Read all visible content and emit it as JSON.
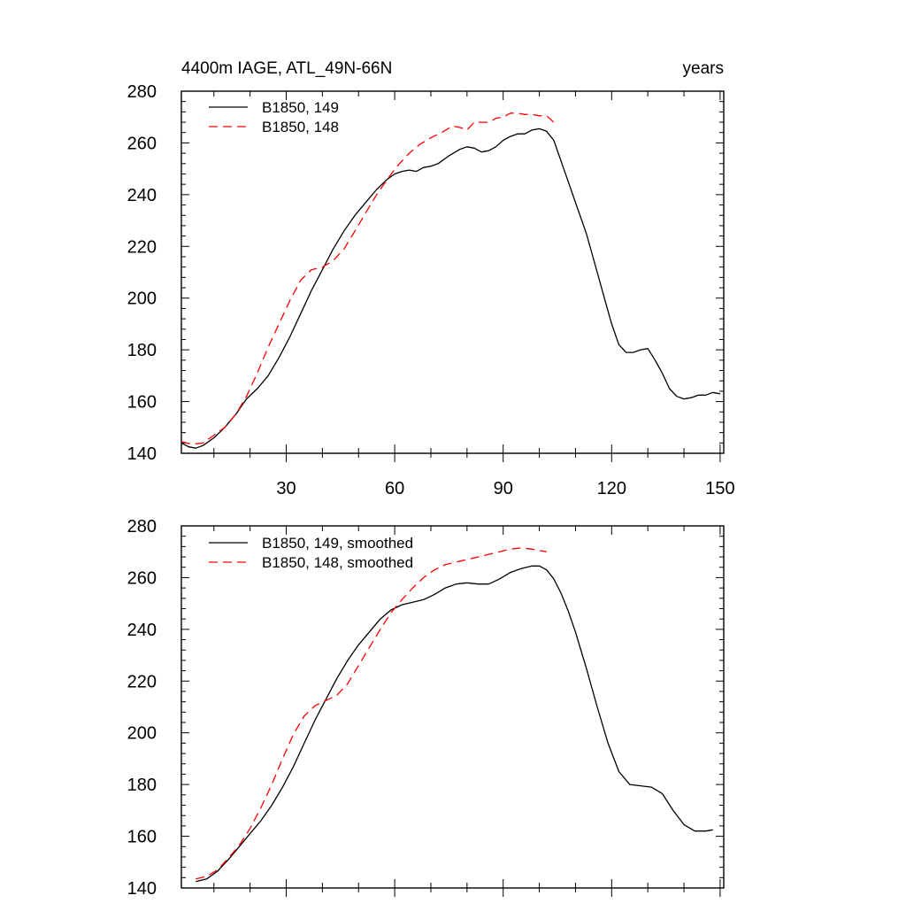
{
  "chart_data": [
    {
      "type": "line",
      "title": "4400m IAGE, ATL_49N-66N",
      "units_label": "years",
      "xlabel": "",
      "ylabel": "",
      "xlim": [
        1,
        151
      ],
      "ylim": [
        140,
        280
      ],
      "xticks": [
        30,
        60,
        90,
        120,
        150
      ],
      "yticks": [
        140,
        160,
        180,
        200,
        220,
        240,
        260,
        280
      ],
      "legend_position": "top-left",
      "series": [
        {
          "name": "B1850, 149",
          "color": "#000000",
          "dash": "solid",
          "x": [
            1,
            3,
            5,
            7,
            10,
            13,
            16,
            19,
            22,
            25,
            28,
            31,
            34,
            37,
            40,
            43,
            46,
            49,
            52,
            55,
            58,
            60,
            62,
            64,
            66,
            68,
            70,
            72,
            75,
            78,
            80,
            82,
            84,
            86,
            88,
            90,
            92,
            94,
            96,
            98,
            100,
            102,
            104,
            106,
            108,
            110,
            113,
            116,
            118,
            120,
            122,
            124,
            126,
            128,
            130,
            132,
            134,
            136,
            138,
            140,
            142,
            144,
            146,
            148,
            150
          ],
          "y": [
            144,
            142.5,
            142,
            143,
            146,
            150,
            155,
            161,
            165,
            170,
            177,
            185,
            194,
            203,
            211,
            219,
            226,
            232,
            237,
            242,
            246,
            248,
            249,
            249.5,
            249,
            250.5,
            251,
            252,
            255,
            257.5,
            258.5,
            258,
            256.5,
            257,
            258.5,
            261,
            262.5,
            263.5,
            263.5,
            265,
            265.5,
            264.5,
            261,
            253,
            245,
            237,
            225,
            210,
            200,
            190,
            182,
            179,
            179,
            180,
            180.5,
            176,
            171,
            165,
            162,
            161,
            161.5,
            162.5,
            162.5,
            163.5,
            163
          ]
        },
        {
          "name": "B1850, 148",
          "color": "#ff0000",
          "dash": "dashed",
          "x": [
            1,
            4,
            7,
            10,
            13,
            16,
            19,
            22,
            25,
            28,
            31,
            34,
            37,
            40,
            43,
            46,
            49,
            52,
            55,
            58,
            61,
            64,
            67,
            70,
            73,
            76,
            78,
            80,
            82,
            84,
            86,
            88,
            90,
            92,
            94,
            96,
            98,
            100,
            102,
            104
          ],
          "y": [
            144.5,
            143.5,
            144,
            147,
            150,
            155,
            162,
            171,
            181,
            190,
            199,
            207,
            211,
            212,
            214.5,
            219,
            226,
            233,
            240,
            246,
            251.5,
            256,
            259.5,
            262,
            264,
            266.5,
            266,
            265,
            268,
            268,
            268,
            269.5,
            270,
            271.5,
            271.5,
            271,
            271,
            270.5,
            270.5,
            268
          ]
        }
      ]
    },
    {
      "type": "line",
      "title": "",
      "xlabel": "",
      "ylabel": "",
      "xlim": [
        1,
        151
      ],
      "ylim": [
        140,
        280
      ],
      "xticks": [
        30,
        60,
        90,
        120,
        150
      ],
      "yticks": [
        140,
        160,
        180,
        200,
        220,
        240,
        260,
        280
      ],
      "legend_position": "top-left",
      "series": [
        {
          "name": "B1850, 149, smoothed",
          "color": "#000000",
          "dash": "solid",
          "x": [
            5,
            8,
            11,
            14,
            17,
            20,
            23,
            26,
            29,
            32,
            35,
            38,
            41,
            44,
            47,
            50,
            53,
            56,
            59,
            62,
            65,
            68,
            71,
            74,
            77,
            80,
            83,
            86,
            89,
            92,
            95,
            98,
            100,
            102,
            104,
            106,
            108,
            110,
            113,
            116,
            119,
            122,
            125,
            128,
            131,
            134,
            137,
            140,
            143,
            146,
            148
          ],
          "y": [
            142.5,
            143.5,
            146.5,
            151,
            156,
            161,
            166,
            172,
            179,
            187,
            196,
            205,
            213,
            221,
            228,
            234,
            239,
            244,
            247.5,
            249.5,
            250.5,
            251.5,
            253.5,
            256,
            257.5,
            258,
            257.5,
            257.5,
            259.5,
            262,
            263.5,
            264.5,
            264.5,
            263,
            259.5,
            254,
            247,
            239,
            225,
            210,
            196,
            185,
            180,
            179.5,
            179,
            176.5,
            170,
            164.5,
            162,
            162,
            162.5
          ]
        },
        {
          "name": "B1850, 148, smoothed",
          "color": "#ff0000",
          "dash": "dashed",
          "x": [
            5,
            8,
            11,
            14,
            17,
            20,
            23,
            26,
            29,
            32,
            35,
            38,
            41,
            44,
            47,
            50,
            53,
            56,
            59,
            62,
            65,
            68,
            71,
            74,
            77,
            80,
            83,
            86,
            89,
            92,
            95,
            98,
            100,
            102
          ],
          "y": [
            143.5,
            144.5,
            147,
            151.5,
            156.5,
            163,
            171,
            180,
            190,
            199.5,
            206.5,
            210.5,
            212.5,
            214.5,
            219,
            226,
            233,
            240,
            246.5,
            251.5,
            256,
            260,
            263,
            265,
            266,
            267,
            268,
            269,
            270,
            271,
            271.5,
            271,
            270.5,
            270
          ]
        }
      ]
    }
  ]
}
